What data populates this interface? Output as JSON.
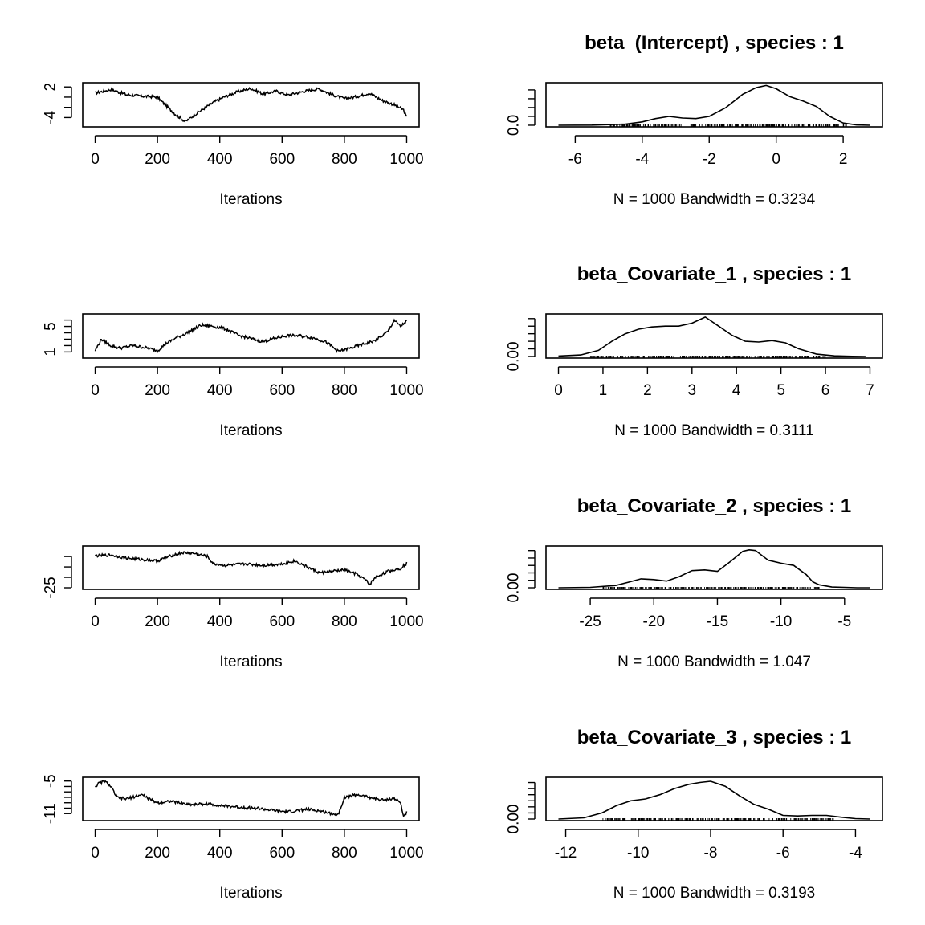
{
  "chart_data": [
    {
      "type": "line",
      "panel": "trace",
      "title": "",
      "xlabel": "Iterations",
      "xlim": [
        0,
        1000
      ],
      "x_ticks": [
        "0",
        "200",
        "400",
        "600",
        "800",
        "1000"
      ],
      "ylim": [
        -5.5,
        2.5
      ],
      "y_ticks": [
        "2",
        "",
        "",
        "-4"
      ],
      "y_tick_values": [
        2,
        0,
        -2,
        -4
      ],
      "series": [
        {
          "x": [
            0,
            50,
            100,
            150,
            200,
            230,
            260,
            290,
            330,
            380,
            420,
            460,
            500,
            540,
            580,
            620,
            660,
            700,
            720,
            760,
            800,
            840,
            880,
            920,
            960,
            990,
            1000
          ],
          "values": [
            0.8,
            1.5,
            0.5,
            0.2,
            0,
            -1.8,
            -3.5,
            -4.8,
            -3,
            -1,
            0.2,
            1.1,
            1.7,
            0.6,
            1.2,
            0.4,
            1,
            1.5,
            1.6,
            0.5,
            -0.3,
            0.1,
            0.8,
            -0.6,
            -1.5,
            -2.5,
            -4
          ]
        }
      ]
    },
    {
      "type": "line",
      "panel": "density",
      "title": "beta_(Intercept) , species :  1",
      "xlabel": "N = 1000   Bandwidth = 0.3234",
      "xlim": [
        -6.5,
        2.8
      ],
      "x_ticks": [
        "-6",
        "-4",
        "-2",
        "0",
        "2"
      ],
      "x_tick_values": [
        -6,
        -4,
        -2,
        0,
        2
      ],
      "ylim": [
        0,
        0.37
      ],
      "y_ticks": [
        "0.0",
        "",
        "",
        "",
        ""
      ],
      "y_tick_values": [
        0,
        0.08,
        0.16,
        0.24,
        0.32
      ],
      "rug_range": [
        -5,
        2.1
      ],
      "series": [
        {
          "x": [
            -6.5,
            -5.5,
            -4.5,
            -4,
            -3.6,
            -3.2,
            -2.8,
            -2.4,
            -2,
            -1.5,
            -1,
            -0.6,
            -0.3,
            0,
            0.4,
            0.8,
            1.2,
            1.6,
            2,
            2.4,
            2.8
          ],
          "values": [
            0,
            0.001,
            0.01,
            0.03,
            0.06,
            0.08,
            0.065,
            0.06,
            0.08,
            0.16,
            0.28,
            0.34,
            0.36,
            0.33,
            0.26,
            0.22,
            0.17,
            0.08,
            0.02,
            0.003,
            0
          ]
        }
      ]
    },
    {
      "type": "line",
      "panel": "trace",
      "title": "",
      "xlabel": "Iterations",
      "xlim": [
        0,
        1000
      ],
      "x_ticks": [
        "0",
        "200",
        "400",
        "600",
        "800",
        "1000"
      ],
      "ylim": [
        0.3,
        6.7
      ],
      "y_ticks": [
        "1",
        "",
        "",
        "",
        "5",
        ""
      ],
      "y_tick_values": [
        1,
        2,
        3,
        4,
        5,
        6
      ],
      "series": [
        {
          "x": [
            0,
            20,
            50,
            80,
            120,
            160,
            200,
            230,
            260,
            300,
            340,
            380,
            420,
            460,
            500,
            540,
            580,
            620,
            660,
            700,
            740,
            780,
            820,
            860,
            900,
            940,
            960,
            980,
            1000
          ],
          "values": [
            1.2,
            3,
            2,
            1.6,
            2,
            1.7,
            1.2,
            2.4,
            3.2,
            4.1,
            5.2,
            5,
            4.6,
            3.6,
            3.1,
            2.6,
            3.2,
            3.6,
            3.5,
            3.2,
            2.6,
            1.1,
            1.6,
            2.2,
            2.8,
            4.2,
            6,
            5,
            5.8
          ]
        }
      ]
    },
    {
      "type": "line",
      "panel": "density",
      "title": "beta_Covariate_1 , species :  1",
      "xlabel": "N = 1000   Bandwidth = 0.3111",
      "xlim": [
        0,
        7
      ],
      "x_ticks": [
        "0",
        "1",
        "2",
        "3",
        "4",
        "5",
        "6",
        "7"
      ],
      "x_tick_values": [
        0,
        1,
        2,
        3,
        4,
        5,
        6,
        7
      ],
      "ylim": [
        0,
        0.27
      ],
      "y_ticks": [
        "0.00",
        "",
        "",
        "",
        "",
        ""
      ],
      "y_tick_values": [
        0,
        0.05,
        0.1,
        0.15,
        0.2,
        0.25
      ],
      "rug_range": [
        0.7,
        6
      ],
      "series": [
        {
          "x": [
            0,
            0.5,
            0.9,
            1.2,
            1.5,
            1.8,
            2.1,
            2.4,
            2.7,
            3,
            3.3,
            3.6,
            3.9,
            4.2,
            4.5,
            4.8,
            5.1,
            5.4,
            5.8,
            6.2,
            6.6,
            6.9
          ],
          "values": [
            0.003,
            0.01,
            0.04,
            0.1,
            0.15,
            0.18,
            0.195,
            0.2,
            0.2,
            0.22,
            0.26,
            0.2,
            0.14,
            0.1,
            0.095,
            0.105,
            0.09,
            0.05,
            0.015,
            0.004,
            0.001,
            0
          ]
        }
      ]
    },
    {
      "type": "line",
      "panel": "trace",
      "title": "",
      "xlabel": "Iterations",
      "xlim": [
        0,
        1000
      ],
      "x_ticks": [
        "0",
        "200",
        "400",
        "600",
        "800",
        "1000"
      ],
      "ylim": [
        -25,
        2
      ],
      "y_ticks": [
        "-25",
        "",
        "",
        ""
      ],
      "y_tick_values": [
        -25,
        -18,
        -11,
        -4
      ],
      "series": [
        {
          "x": [
            0,
            50,
            100,
            150,
            200,
            250,
            280,
            320,
            360,
            380,
            420,
            480,
            540,
            600,
            640,
            680,
            720,
            760,
            800,
            840,
            870,
            880,
            900,
            940,
            980,
            1000
          ],
          "values": [
            -3.5,
            -3,
            -5,
            -6,
            -7,
            -3,
            -1.5,
            -2,
            -4,
            -9,
            -10,
            -9,
            -10,
            -9,
            -7,
            -11,
            -15,
            -14,
            -13,
            -16,
            -20,
            -23,
            -18,
            -14,
            -12,
            -8.5
          ]
        }
      ]
    },
    {
      "type": "line",
      "panel": "density",
      "title": "beta_Covariate_2 , species :  1",
      "xlabel": "N = 1000   Bandwidth = 1.047",
      "xlim": [
        -27.5,
        -3
      ],
      "x_ticks": [
        "-25",
        "-20",
        "-15",
        "-10",
        "-5"
      ],
      "x_tick_values": [
        -25,
        -20,
        -15,
        -10,
        -5
      ],
      "ylim": [
        0,
        0.108
      ],
      "y_ticks": [
        "0.00",
        "",
        "",
        "",
        "",
        ""
      ],
      "y_tick_values": [
        0,
        0.02,
        0.04,
        0.06,
        0.08,
        0.1
      ],
      "rug_range": [
        -24,
        -7
      ],
      "series": [
        {
          "x": [
            -27.5,
            -25,
            -23,
            -22,
            -21,
            -20,
            -19,
            -18,
            -17,
            -16,
            -15,
            -14,
            -13,
            -12.5,
            -12,
            -11,
            -10,
            -9,
            -8,
            -7.5,
            -7,
            -6,
            -5,
            -4,
            -3
          ],
          "values": [
            0,
            0.001,
            0.006,
            0.015,
            0.024,
            0.022,
            0.018,
            0.03,
            0.046,
            0.048,
            0.044,
            0.07,
            0.098,
            0.102,
            0.1,
            0.074,
            0.066,
            0.06,
            0.035,
            0.016,
            0.008,
            0.002,
            0.001,
            0,
            0
          ]
        }
      ]
    },
    {
      "type": "line",
      "panel": "trace",
      "title": "",
      "xlabel": "Iterations",
      "xlim": [
        0,
        1000
      ],
      "x_ticks": [
        "0",
        "200",
        "400",
        "600",
        "800",
        "1000"
      ],
      "ylim": [
        -12,
        -4.6
      ],
      "y_ticks": [
        "-11",
        "",
        "",
        "",
        "",
        "",
        "-5"
      ],
      "y_tick_values": [
        -11,
        -10,
        -9,
        -8,
        -7,
        -6,
        -5
      ],
      "series": [
        {
          "x": [
            0,
            10,
            30,
            50,
            70,
            100,
            150,
            180,
            200,
            240,
            300,
            360,
            400,
            460,
            520,
            580,
            620,
            680,
            720,
            760,
            780,
            800,
            840,
            880,
            920,
            960,
            980,
            990,
            1000
          ],
          "values": [
            -6,
            -5.5,
            -5,
            -6,
            -8,
            -8.3,
            -7.5,
            -8.5,
            -9,
            -8.7,
            -9.3,
            -9.2,
            -9.5,
            -9.8,
            -10,
            -10.5,
            -10.7,
            -10.2,
            -10.5,
            -11,
            -11.2,
            -8,
            -7.5,
            -8,
            -8.5,
            -8.2,
            -9,
            -11.5,
            -10.8
          ]
        }
      ]
    },
    {
      "type": "line",
      "panel": "density",
      "title": "beta_Covariate_3 , species :  1",
      "xlabel": "N = 1000   Bandwidth = 0.3193",
      "xlim": [
        -12.2,
        -3.6
      ],
      "x_ticks": [
        "-12",
        "-10",
        "-8",
        "-6",
        "-4"
      ],
      "x_tick_values": [
        -12,
        -10,
        -8,
        -6,
        -4
      ],
      "ylim": [
        0,
        0.33
      ],
      "y_ticks": [
        "0.00",
        "",
        "",
        "",
        "",
        "",
        ""
      ],
      "y_tick_values": [
        0,
        0.05,
        0.1,
        0.15,
        0.2,
        0.25,
        0.3
      ],
      "rug_range": [
        -11,
        -4.6
      ],
      "series": [
        {
          "x": [
            -12.2,
            -11.5,
            -11,
            -10.6,
            -10.2,
            -9.8,
            -9.4,
            -9,
            -8.6,
            -8.3,
            -8,
            -7.6,
            -7.2,
            -6.8,
            -6.4,
            -6,
            -5.6,
            -5.2,
            -4.8,
            -4.4,
            -4,
            -3.6
          ],
          "values": [
            0,
            0.01,
            0.05,
            0.11,
            0.15,
            0.165,
            0.2,
            0.25,
            0.285,
            0.3,
            0.31,
            0.27,
            0.19,
            0.12,
            0.08,
            0.03,
            0.025,
            0.03,
            0.03,
            0.015,
            0.003,
            0
          ]
        }
      ]
    }
  ]
}
